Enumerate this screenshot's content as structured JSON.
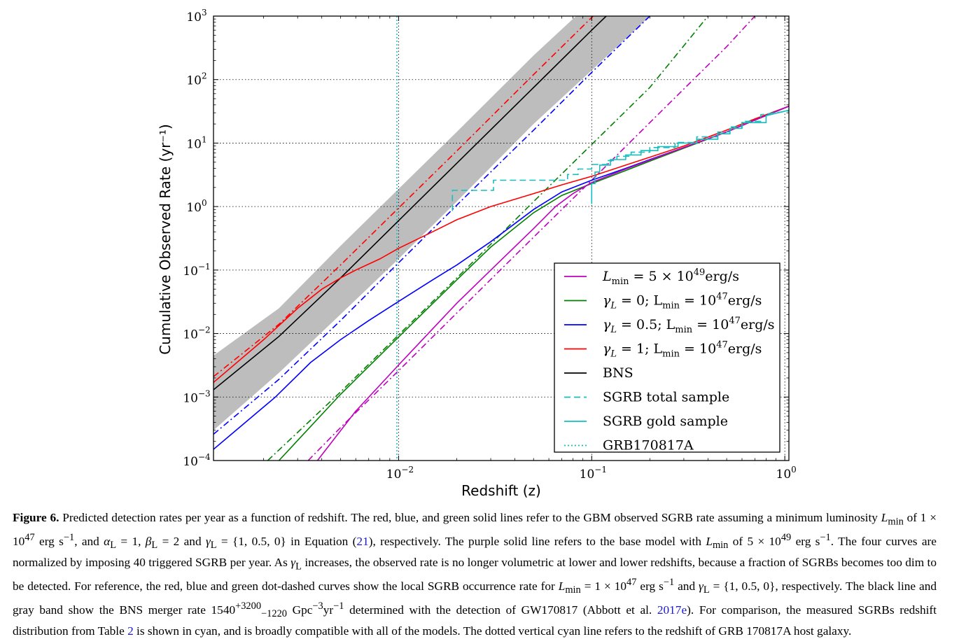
{
  "chart_data": {
    "type": "line",
    "xlabel": "Redshift (z)",
    "ylabel": "Cumulative Observed Rate (yr⁻¹)",
    "xscale": "log",
    "yscale": "log",
    "xlim": [
      0.0011,
      1.05
    ],
    "ylim": [
      0.0001,
      1000
    ],
    "grid": true,
    "legend_position": "lower-right",
    "x_ticks": [
      {
        "value": 0.01,
        "base": "10",
        "exp": "−2"
      },
      {
        "value": 0.1,
        "base": "10",
        "exp": "−1"
      },
      {
        "value": 1,
        "base": "10",
        "exp": "0"
      }
    ],
    "y_ticks": [
      {
        "value": 0.0001,
        "base": "10",
        "exp": "−4"
      },
      {
        "value": 0.001,
        "base": "10",
        "exp": "−3"
      },
      {
        "value": 0.01,
        "base": "10",
        "exp": "−2"
      },
      {
        "value": 0.1,
        "base": "10",
        "exp": "−1"
      },
      {
        "value": 1,
        "base": "10",
        "exp": "0"
      },
      {
        "value": 10,
        "base": "10",
        "exp": "1"
      },
      {
        "value": 100,
        "base": "10",
        "exp": "2"
      },
      {
        "value": 1000,
        "base": "10",
        "exp": "3"
      }
    ],
    "vline": {
      "name": "GRB170817A",
      "x": 0.0098,
      "color": "#17bebe"
    },
    "band": {
      "name": "BNS band",
      "color": "#bdbdbd",
      "x": [
        0.0011,
        0.0024,
        0.005,
        0.01,
        0.02,
        0.05,
        0.1,
        0.2
      ],
      "lower": [
        0.0003,
        0.0024,
        0.02,
        0.15,
        1.2,
        20,
        140,
        1000
      ],
      "upper": [
        0.0045,
        0.025,
        0.24,
        1.9,
        15,
        240,
        1700,
        12000
      ]
    },
    "series": [
      {
        "legend": "BNS",
        "style": "solid",
        "color": "#000000",
        "x": [
          0.0011,
          0.0024,
          0.005,
          0.01,
          0.02,
          0.05,
          0.1,
          0.13
        ],
        "y": [
          0.0013,
          0.009,
          0.075,
          0.6,
          4.8,
          75,
          600,
          1300
        ]
      },
      {
        "legend": "red local (dot-dashed)",
        "style": "dashdot",
        "color": "#ff0000",
        "x": [
          0.0011,
          0.0024,
          0.005,
          0.01,
          0.02,
          0.05,
          0.1,
          0.112
        ],
        "y": [
          0.0021,
          0.014,
          0.12,
          0.95,
          7.5,
          120,
          950,
          1350
        ]
      },
      {
        "legend": "blue local (dot-dashed)",
        "style": "dashdot",
        "color": "#0000ff",
        "x": [
          0.0011,
          0.0024,
          0.005,
          0.01,
          0.02,
          0.05,
          0.1,
          0.2
        ],
        "y": [
          0.00026,
          0.0019,
          0.016,
          0.13,
          1.05,
          16,
          130,
          1000
        ]
      },
      {
        "legend": "green local (dot-dashed)",
        "style": "dashdot",
        "color": "#008000",
        "x": [
          0.0021,
          0.005,
          0.01,
          0.02,
          0.05,
          0.1,
          0.2,
          0.4
        ],
        "y": [
          0.0001,
          0.0012,
          0.0095,
          0.075,
          1.2,
          9.5,
          75,
          1000
        ]
      },
      {
        "legend": "magenta local (dot-dashed)",
        "style": "dashdot",
        "color": "#bf00bf",
        "x": [
          0.0034,
          0.005,
          0.01,
          0.02,
          0.05,
          0.1,
          0.2,
          0.5,
          0.7
        ],
        "y": [
          0.0001,
          0.00033,
          0.0026,
          0.021,
          0.33,
          2.6,
          21,
          330,
          1000
        ]
      },
      {
        "legend": "γL = 1; Lmin = 10⁴⁷erg/s",
        "style": "solid",
        "color": "#ff0000",
        "x": [
          0.0011,
          0.002,
          0.003,
          0.004,
          0.005,
          0.006,
          0.008,
          0.01,
          0.015,
          0.02,
          0.03,
          0.05,
          0.07,
          0.1,
          0.15,
          0.2,
          0.3,
          0.5,
          0.7,
          1.05
        ],
        "y": [
          0.0017,
          0.008,
          0.025,
          0.05,
          0.075,
          0.1,
          0.15,
          0.22,
          0.4,
          0.62,
          1.0,
          1.6,
          2.2,
          3.0,
          4.5,
          6.0,
          9.0,
          16,
          24,
          38
        ]
      },
      {
        "legend": "γL = 0.5; Lmin = 10⁴⁷erg/s",
        "style": "solid",
        "color": "#0000ff",
        "x": [
          0.0011,
          0.0023,
          0.0035,
          0.005,
          0.007,
          0.01,
          0.015,
          0.02,
          0.03,
          0.05,
          0.07,
          0.1,
          0.15,
          0.2,
          0.3,
          0.5,
          0.7,
          1.05
        ],
        "y": [
          0.00015,
          0.001,
          0.0035,
          0.008,
          0.016,
          0.032,
          0.07,
          0.12,
          0.28,
          0.9,
          1.7,
          2.6,
          4.0,
          5.5,
          8.5,
          15,
          23,
          38
        ]
      },
      {
        "legend": "γL = 0; Lmin = 10⁴⁷erg/s",
        "style": "solid",
        "color": "#008000",
        "x": [
          0.0024,
          0.005,
          0.01,
          0.02,
          0.03,
          0.05,
          0.07,
          0.1,
          0.15,
          0.2,
          0.3,
          0.5,
          0.7,
          1.05
        ],
        "y": [
          0.0001,
          0.0011,
          0.0088,
          0.07,
          0.23,
          0.8,
          1.5,
          2.3,
          3.7,
          5.2,
          8.3,
          15,
          23,
          38
        ]
      },
      {
        "legend": "Lmin = 5 × 10⁴⁹erg/s",
        "style": "solid",
        "color": "#bf00bf",
        "x": [
          0.0038,
          0.006,
          0.01,
          0.02,
          0.03,
          0.05,
          0.065,
          0.08,
          0.1,
          0.15,
          0.2,
          0.3,
          0.5,
          0.7,
          1.05
        ],
        "y": [
          0.0001,
          0.0006,
          0.0032,
          0.03,
          0.1,
          0.45,
          1.0,
          1.6,
          2.4,
          3.9,
          5.4,
          8.5,
          15,
          23,
          38
        ]
      },
      {
        "legend": "SGRB total sample",
        "style": "dashed-step",
        "color": "#17bebe",
        "x": [
          0.019,
          0.019,
          0.031,
          0.031,
          0.075,
          0.075,
          0.085,
          0.085,
          0.1,
          0.1,
          0.12,
          0.12,
          0.135,
          0.135,
          0.16,
          0.16,
          0.2,
          0.2,
          0.27,
          0.27,
          0.35,
          0.35,
          0.45,
          0.45,
          0.52,
          0.52,
          0.6,
          0.6,
          0.75,
          0.75,
          1.05
        ],
        "y": [
          0.85,
          1.8,
          1.8,
          2.6,
          2.6,
          3.2,
          3.2,
          3.9,
          3.9,
          4.6,
          4.6,
          5.3,
          5.3,
          6.2,
          6.2,
          7.2,
          7.2,
          8.5,
          8.5,
          10.2,
          10.2,
          12.5,
          12.5,
          15,
          15,
          18,
          18,
          22,
          22,
          28,
          32
        ]
      },
      {
        "legend": "SGRB gold sample",
        "style": "solid-step",
        "color": "#17bebe",
        "x": [
          0.1,
          0.1,
          0.104,
          0.104,
          0.11,
          0.11,
          0.125,
          0.125,
          0.15,
          0.15,
          0.18,
          0.18,
          0.22,
          0.22,
          0.28,
          0.28,
          0.35,
          0.35,
          0.45,
          0.45,
          0.52,
          0.52,
          0.6,
          0.6,
          0.8,
          0.8,
          1.05
        ],
        "y": [
          1.1,
          2.3,
          2.3,
          3.5,
          3.5,
          4.5,
          4.5,
          5.5,
          5.5,
          6.5,
          6.5,
          7.6,
          7.6,
          8.8,
          8.8,
          10.0,
          10.0,
          11.5,
          11.5,
          14,
          14,
          17,
          17,
          21,
          21,
          27,
          33
        ]
      }
    ],
    "legend": [
      {
        "key": "magenta",
        "color": "#bf00bf",
        "style": "solid",
        "text_main": "L",
        "text_sub": "min",
        "text_rest": " = 5 × 10",
        "text_sup": "49",
        "text_tail": "erg/s"
      },
      {
        "key": "green",
        "color": "#008000",
        "style": "solid",
        "text_main": "γ",
        "text_sub": "L",
        "text_rest": " = 0; L",
        "text_sub2": "min",
        "text_rest2": " = 10",
        "text_sup": "47",
        "text_tail": "erg/s"
      },
      {
        "key": "blue",
        "color": "#0000ff",
        "style": "solid",
        "text_main": "γ",
        "text_sub": "L",
        "text_rest": " = 0.5; L",
        "text_sub2": "min",
        "text_rest2": " = 10",
        "text_sup": "47",
        "text_tail": "erg/s"
      },
      {
        "key": "red",
        "color": "#ff0000",
        "style": "solid",
        "text_main": "γ",
        "text_sub": "L",
        "text_rest": " = 1; L",
        "text_sub2": "min",
        "text_rest2": " = 10",
        "text_sup": "47",
        "text_tail": "erg/s"
      },
      {
        "key": "bns",
        "color": "#000000",
        "style": "solid",
        "text_main": "BNS"
      },
      {
        "key": "total",
        "color": "#17bebe",
        "style": "dashed",
        "text_main": "SGRB total sample"
      },
      {
        "key": "gold",
        "color": "#17bebe",
        "style": "solid",
        "text_main": "SGRB gold sample"
      },
      {
        "key": "grb",
        "color": "#17bebe",
        "style": "dotted",
        "text_main": "GRB170817A"
      }
    ]
  },
  "caption": {
    "label": "Figure 6.",
    "text": "Predicted detection rates per year as a function of redshift. The red, blue, and green solid lines refer to the GBM observed SGRB rate assuming a minimum luminosity L_min of 1 × 10^47 erg s^−1, and α_L = 1, β_L = 2 and γ_L = {1, 0.5, 0} in Equation (21), respectively. The purple solid line refers to the base model with L_min of 5 × 10^49 erg s^−1. The four curves are normalized by imposing 40 triggered SGRB per year. As γ_L increases, the observed rate is no longer volumetric at lower and lower redshifts, because a fraction of SGRBs becomes too dim to be detected. For reference, the red, blue and green dot-dashed curves show the local SGRB occurrence rate for L_min = 1 × 10^47 erg s^−1 and γ_L = {1, 0.5, 0}, respectively. The black line and gray band show the BNS merger rate 1540^+3200_−1220 Gpc^−3yr^−1 determined with the detection of GW170817 (Abbott et al. 2017e). For comparison, the measured SGRBs redshift distribution from Table 2 is shown in cyan, and is broadly compatible with all of the models. The dotted vertical cyan line refers to the redshift of GRB 170817A host galaxy.",
    "p1": "Predicted detection rates per year as a function of redshift. The red, blue, and green solid lines refer to the GBM observed SGRB rate assuming a minimum luminosity ",
    "p2": " erg s",
    "p3": ", and ",
    "p4": " = 1, ",
    "p5": " = 2 and ",
    "p6": " = {1, 0.5, 0} in Equation (",
    "eq_ref": "21",
    "p7": "), respectively. The purple solid line refers to the base model with ",
    "p8": " erg s",
    "p9": ". The four curves are normalized by imposing 40 triggered SGRB per year. As ",
    "p10": " increases, the observed rate is no longer volumetric at lower and lower redshifts, because a fraction of SGRBs becomes too dim to be detected. For reference, the red, blue and green dot-dashed curves show the local SGRB occurrence rate for ",
    "p11": " erg s",
    "p12": " and ",
    "p13": " = {1, 0.5, 0}, respectively. The black line and gray band show the BNS merger rate 1540",
    "p14": " Gpc",
    "p15": "yr",
    "p16": " determined with the detection of GW170817 (Abbott et al. ",
    "cite_ref": "2017e",
    "p17": "). For comparison, the measured SGRBs redshift distribution from Table ",
    "table_ref": "2",
    "p18": " is shown in cyan, and is broadly compatible with all of the models. The dotted vertical cyan line refers to the redshift of GRB 170817A host galaxy.",
    "sym_Lmin": "L",
    "sym_min": "min",
    "sym_of": " of 1 × 10",
    "sym_of5": " of 5 × 10",
    "sym_eq1": " = 1 × 10",
    "exp47": "47",
    "exp49": "49",
    "exp_m1": "−1",
    "exp_m3": "−3",
    "sup_p": "+3200",
    "sub_m": "−1220",
    "sym_alpha": "α",
    "sym_beta": "β",
    "sym_gamma": "γ",
    "sub_L": "L"
  }
}
